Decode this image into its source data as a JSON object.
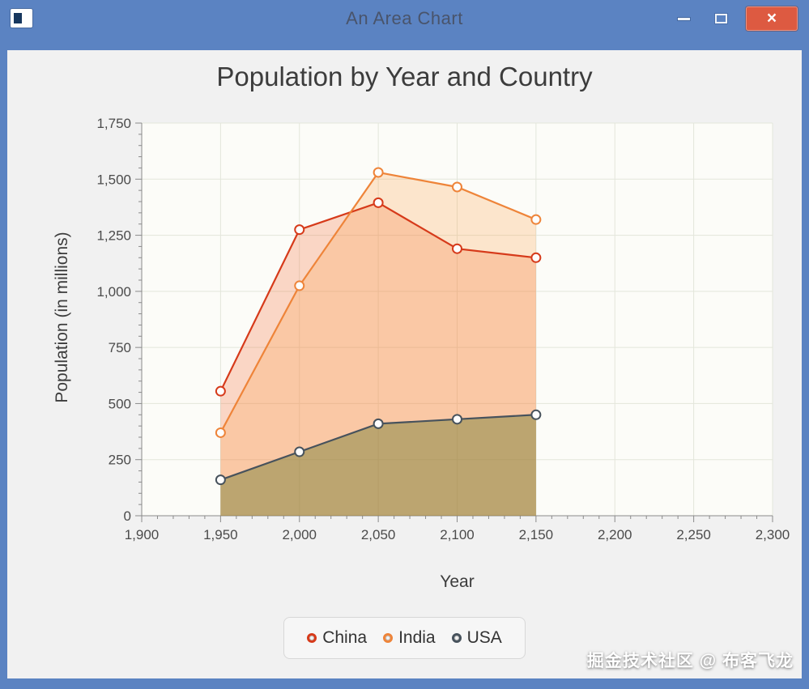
{
  "window": {
    "title": "An Area Chart",
    "icons": {
      "close_glyph": "×"
    },
    "titlebar_color": "#5b83c2",
    "close_button_color": "#dd5a41"
  },
  "watermark": "掘金技术社区 @ 布客飞龙",
  "chart_data": {
    "type": "area",
    "title": "Population by Year and Country",
    "xlabel": "Year",
    "ylabel": "Population (in millions)",
    "x": [
      1950,
      2000,
      2050,
      2100,
      2150
    ],
    "series": [
      {
        "name": "China",
        "color": "#d63a1a",
        "fill": "rgba(243,98,45,0.25)",
        "values": [
          555,
          1275,
          1395,
          1190,
          1150
        ]
      },
      {
        "name": "India",
        "color": "#ee8439",
        "fill": "rgba(250,160,70,0.25)",
        "values": [
          370,
          1025,
          1530,
          1465,
          1320
        ]
      },
      {
        "name": "USA",
        "color": "#47525c",
        "fill": "rgba(125,130,60,0.5)",
        "values": [
          160,
          285,
          410,
          430,
          450
        ]
      }
    ],
    "xlim": [
      1900,
      2300
    ],
    "x_tick_step": 50,
    "x_minor_step": 10,
    "ylim": [
      0,
      1750
    ],
    "y_tick_step": 250,
    "y_minor_step": 50,
    "grid": true,
    "legend_position": "bottom",
    "colors": {
      "plot_background": "#fcfcf8",
      "gridline": "#e3e6db",
      "axis": "#8a8a8a",
      "tick": "#8a8a8a",
      "tick_label": "#4b4b4b"
    }
  }
}
